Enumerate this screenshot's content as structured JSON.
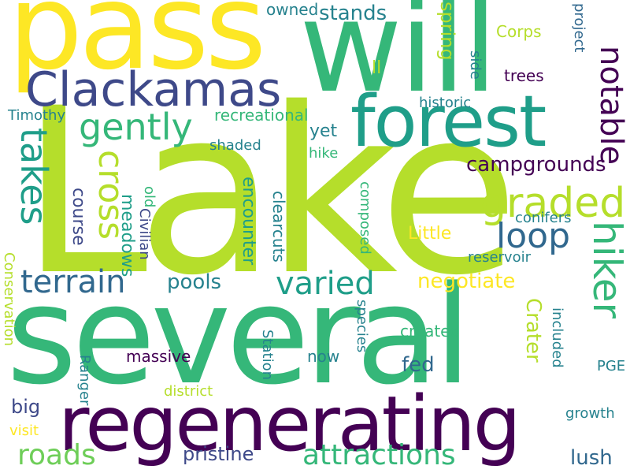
{
  "palette": {
    "background": "#ffffff",
    "dark_purple": "#440154",
    "indigo": "#3e4989",
    "blue": "#31688e",
    "teal": "#26828e",
    "teal_green": "#1f9e89",
    "green": "#35b779",
    "light_green": "#6ece58",
    "lime": "#b5de2b",
    "yellow": "#fde725"
  },
  "words": [
    {
      "text": "Lake"
    },
    {
      "text": "several"
    },
    {
      "text": "pass"
    },
    {
      "text": "will"
    },
    {
      "text": "regenerating"
    },
    {
      "text": "forest"
    },
    {
      "text": "Clackamas"
    },
    {
      "text": "notable"
    },
    {
      "text": "hiker"
    },
    {
      "text": "gently"
    },
    {
      "text": "graded"
    },
    {
      "text": "loop"
    },
    {
      "text": "takes"
    },
    {
      "text": "cross"
    },
    {
      "text": "terrain"
    },
    {
      "text": "varied"
    },
    {
      "text": "attractions"
    },
    {
      "text": "roads"
    },
    {
      "text": "campgrounds"
    },
    {
      "text": "stands"
    },
    {
      "text": "spring"
    },
    {
      "text": "Corps"
    },
    {
      "text": "owned"
    },
    {
      "text": "project"
    },
    {
      "text": "side"
    },
    {
      "text": "trees"
    },
    {
      "text": "ll"
    },
    {
      "text": "historic"
    },
    {
      "text": "Timothy"
    },
    {
      "text": "recreational"
    },
    {
      "text": "yet"
    },
    {
      "text": "shaded"
    },
    {
      "text": "hike"
    },
    {
      "text": "old"
    },
    {
      "text": "course"
    },
    {
      "text": "meadows"
    },
    {
      "text": "Civilian"
    },
    {
      "text": "encounter"
    },
    {
      "text": "clearcuts"
    },
    {
      "text": "composed"
    },
    {
      "text": "conifers"
    },
    {
      "text": "Little"
    },
    {
      "text": "reservoir"
    },
    {
      "text": "pools"
    },
    {
      "text": "negotiate"
    },
    {
      "text": "Crater"
    },
    {
      "text": "Conservation"
    },
    {
      "text": "Ranger"
    },
    {
      "text": "Station"
    },
    {
      "text": "species"
    },
    {
      "text": "created"
    },
    {
      "text": "included"
    },
    {
      "text": "massive"
    },
    {
      "text": "now"
    },
    {
      "text": "PGE"
    },
    {
      "text": "fed"
    },
    {
      "text": "big"
    },
    {
      "text": "district"
    },
    {
      "text": "visit"
    },
    {
      "text": "growth"
    },
    {
      "text": "pristine"
    },
    {
      "text": "lush"
    }
  ]
}
